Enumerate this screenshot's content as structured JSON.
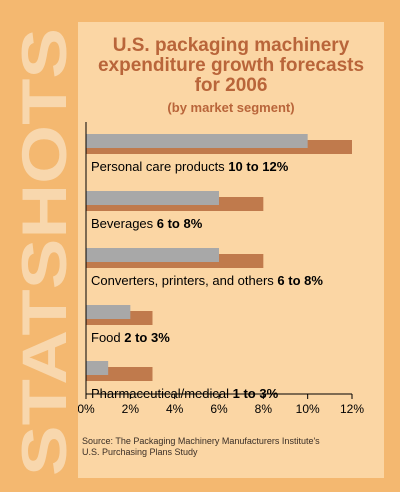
{
  "decor": {
    "side_word": "STATSHOTS",
    "side_color": "#f8d7ad",
    "page_bg": "#f4b870",
    "panel_bg": "#fbd6a4"
  },
  "header": {
    "title": "U.S. packaging machinery expenditure growth forecasts for 2006",
    "subtitle": "(by market segment)"
  },
  "source": {
    "line1": "Source: The Packaging Machinery Manufacturers Institute's",
    "line2": "U.S. Purchasing Plans Study"
  },
  "colors": {
    "low_bar": "#a8a8a8",
    "high_bar": "#c07a4c",
    "text": "#000000",
    "title": "#b9653a"
  },
  "chart_data": {
    "type": "bar",
    "orientation": "horizontal",
    "xlim": [
      0,
      12
    ],
    "ticks": [
      "0%",
      "2%",
      "4%",
      "6%",
      "8%",
      "10%",
      "12%"
    ],
    "grid": false,
    "categories": [
      {
        "name": "Personal care products",
        "range": "10 to 12%"
      },
      {
        "name": "Beverages",
        "range": "6 to 8%"
      },
      {
        "name": "Converters, printers, and others",
        "range": "6 to 8%"
      },
      {
        "name": "Food",
        "range": "2 to 3%"
      },
      {
        "name": "Pharmaceutical/medical",
        "range": "1 to 3%"
      }
    ],
    "series": [
      {
        "values": [
          10,
          6,
          6,
          2,
          1
        ]
      },
      {
        "values": [
          12,
          8,
          8,
          3,
          3
        ]
      }
    ]
  }
}
